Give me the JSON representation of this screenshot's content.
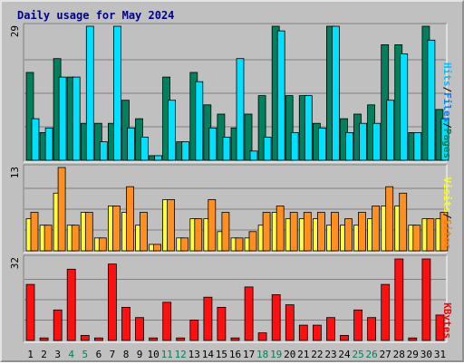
{
  "chart_data": [
    {
      "type": "bar",
      "title": "Daily usage for May 2024",
      "ylim": [
        0,
        29
      ],
      "ymax_label": "29",
      "legend": [
        {
          "name": "Pages",
          "color": "#008060"
        },
        {
          "name": "Files",
          "color": "#0080ff"
        },
        {
          "name": "Hits",
          "color": "#00c0ff"
        }
      ],
      "legend_separator": "/",
      "legend_separator_color": "#000000",
      "series": [
        {
          "name": "Pages",
          "color": "#00805c",
          "values": [
            19,
            6,
            22,
            18,
            8,
            8,
            8,
            13,
            9,
            1,
            18,
            4,
            19,
            12,
            10,
            7,
            10,
            14,
            29,
            14,
            14,
            8,
            29,
            9,
            10,
            12,
            25,
            25,
            6,
            29,
            11
          ]
        },
        {
          "name": "Hits",
          "color": "#00e0ff",
          "values": [
            9,
            7,
            18,
            18,
            29,
            4,
            29,
            7,
            5,
            1,
            13,
            4,
            17,
            7,
            5,
            22,
            2,
            5,
            28,
            6,
            14,
            7,
            29,
            6,
            8,
            8,
            13,
            23,
            6,
            26,
            9
          ]
        }
      ]
    },
    {
      "type": "bar",
      "ylim": [
        0,
        13
      ],
      "ymax_label": "13",
      "legend": [
        {
          "name": "Sites",
          "color": "#ff8000"
        },
        {
          "name": "Visits",
          "color": "#ffff00"
        }
      ],
      "legend_separator": "/",
      "legend_separator_color": "#000000",
      "series": [
        {
          "name": "Visits",
          "color": "#ffff40",
          "values": [
            5,
            4,
            9,
            4,
            6,
            2,
            7,
            6,
            4,
            1,
            8,
            2,
            5,
            5,
            3,
            2,
            2,
            4,
            6,
            5,
            5,
            5,
            4,
            4,
            4,
            5,
            7,
            7,
            4,
            5,
            5
          ]
        },
        {
          "name": "Sites",
          "color": "#ff9020",
          "values": [
            6,
            4,
            13,
            4,
            6,
            2,
            7,
            10,
            6,
            1,
            8,
            2,
            5,
            8,
            6,
            2,
            3,
            6,
            7,
            6,
            6,
            6,
            6,
            5,
            6,
            7,
            10,
            9,
            4,
            5,
            6
          ]
        }
      ]
    },
    {
      "type": "bar",
      "ylim": [
        0,
        32
      ],
      "ymax_label": "32",
      "legend": [
        {
          "name": "KBytes",
          "color": "#ff0000"
        }
      ],
      "series": [
        {
          "name": "KBytes",
          "color": "#ff1010",
          "values": [
            22,
            1,
            12,
            28,
            2,
            1,
            30,
            13,
            9,
            1,
            15,
            1,
            8,
            17,
            13,
            1,
            21,
            3,
            18,
            14,
            6,
            6,
            9,
            2,
            12,
            9,
            22,
            32,
            1,
            32,
            10
          ]
        }
      ]
    }
  ],
  "x_axis": {
    "labels": [
      "1",
      "2",
      "3",
      "4",
      "5",
      "6",
      "7",
      "8",
      "9",
      "10",
      "11",
      "12",
      "13",
      "14",
      "15",
      "16",
      "17",
      "18",
      "19",
      "20",
      "21",
      "22",
      "23",
      "24",
      "25",
      "26",
      "27",
      "28",
      "29",
      "30",
      "31"
    ],
    "weekend_days": [
      4,
      5,
      11,
      12,
      18,
      19,
      25,
      26
    ],
    "weekday_color": "#000000",
    "weekend_color": "#00805c"
  },
  "colors": {
    "background": "#c0c0c0",
    "bar_outline": "#000000",
    "gridline": "#808080",
    "title": "#00008b"
  }
}
